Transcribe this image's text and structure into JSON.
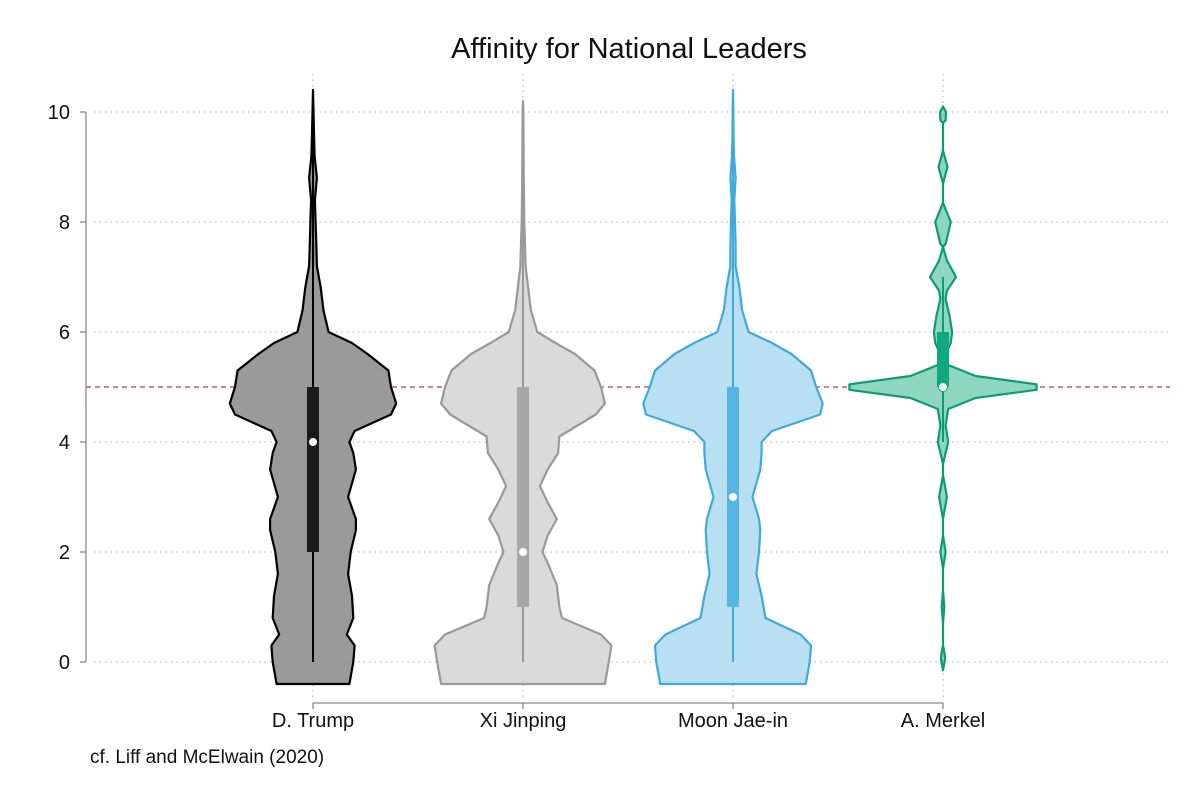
{
  "chart_data": {
    "type": "violin",
    "title": "Affinity for National Leaders",
    "xlabel": "",
    "ylabel": "",
    "ylim": [
      0,
      10
    ],
    "yticks": [
      0,
      2,
      4,
      6,
      8,
      10
    ],
    "grid": true,
    "reference_line": {
      "y": 5,
      "color": "#c0587a",
      "style": "dashed"
    },
    "note": "cf. Liff and McElwain (2020)",
    "categories": [
      "D. Trump",
      "Xi Jinping",
      "Moon Jae-in",
      "A. Merkel"
    ],
    "series": [
      {
        "name": "D. Trump",
        "fill": "#9a9a9a",
        "stroke": "#000000",
        "box_color": "#1a1a1a",
        "median": 4,
        "q1": 2,
        "q3": 5,
        "whisker_low": 0,
        "whisker_high": 10,
        "density": [
          [
            -0.4,
            0.28
          ],
          [
            0,
            0.31
          ],
          [
            0.3,
            0.32
          ],
          [
            0.5,
            0.26
          ],
          [
            0.8,
            0.31
          ],
          [
            1.2,
            0.3
          ],
          [
            1.6,
            0.27
          ],
          [
            2.0,
            0.29
          ],
          [
            2.4,
            0.33
          ],
          [
            2.6,
            0.33
          ],
          [
            3.0,
            0.27
          ],
          [
            3.5,
            0.33
          ],
          [
            3.8,
            0.31
          ],
          [
            4.0,
            0.28
          ],
          [
            4.2,
            0.32
          ],
          [
            4.5,
            0.6
          ],
          [
            4.7,
            0.64
          ],
          [
            5.0,
            0.6
          ],
          [
            5.3,
            0.58
          ],
          [
            5.6,
            0.42
          ],
          [
            5.8,
            0.3
          ],
          [
            6.0,
            0.12
          ],
          [
            6.4,
            0.08
          ],
          [
            6.8,
            0.06
          ],
          [
            7.2,
            0.03
          ],
          [
            7.6,
            0.025
          ],
          [
            8.0,
            0.02
          ],
          [
            8.4,
            0.015
          ],
          [
            8.8,
            0.03
          ],
          [
            9.2,
            0.012
          ],
          [
            9.6,
            0.008
          ],
          [
            10.0,
            0.004
          ],
          [
            10.4,
            0
          ]
        ]
      },
      {
        "name": "Xi Jinping",
        "fill": "#dadada",
        "stroke": "#999999",
        "box_color": "#a7a7a7",
        "median": 2,
        "q1": 1,
        "q3": 5,
        "whisker_low": 0,
        "whisker_high": 10,
        "density": [
          [
            -0.4,
            0.63
          ],
          [
            0,
            0.66
          ],
          [
            0.3,
            0.68
          ],
          [
            0.5,
            0.6
          ],
          [
            0.8,
            0.3
          ],
          [
            1.0,
            0.28
          ],
          [
            1.4,
            0.26
          ],
          [
            1.8,
            0.19
          ],
          [
            2.0,
            0.15
          ],
          [
            2.3,
            0.19
          ],
          [
            2.6,
            0.26
          ],
          [
            2.9,
            0.19
          ],
          [
            3.2,
            0.13
          ],
          [
            3.5,
            0.19
          ],
          [
            3.8,
            0.27
          ],
          [
            4.1,
            0.28
          ],
          [
            4.5,
            0.56
          ],
          [
            4.7,
            0.63
          ],
          [
            5.0,
            0.6
          ],
          [
            5.3,
            0.55
          ],
          [
            5.6,
            0.4
          ],
          [
            5.8,
            0.25
          ],
          [
            6.0,
            0.11
          ],
          [
            6.4,
            0.06
          ],
          [
            6.8,
            0.04
          ],
          [
            7.2,
            0.02
          ],
          [
            7.6,
            0.015
          ],
          [
            8.0,
            0.01
          ],
          [
            8.4,
            0.008
          ],
          [
            8.8,
            0.006
          ],
          [
            9.2,
            0.005
          ],
          [
            9.6,
            0.004
          ],
          [
            10.0,
            0.003
          ],
          [
            10.2,
            0
          ]
        ]
      },
      {
        "name": "Moon Jae-in",
        "fill": "#b9e0f2",
        "stroke": "#3fa9de",
        "box_color": "#55b6e6",
        "median": 3,
        "q1": 1,
        "q3": 5,
        "whisker_low": 0,
        "whisker_high": 10,
        "density": [
          [
            -0.4,
            0.56
          ],
          [
            0,
            0.59
          ],
          [
            0.3,
            0.6
          ],
          [
            0.5,
            0.52
          ],
          [
            0.8,
            0.25
          ],
          [
            1.2,
            0.22
          ],
          [
            1.6,
            0.18
          ],
          [
            2.0,
            0.2
          ],
          [
            2.4,
            0.21
          ],
          [
            2.6,
            0.2
          ],
          [
            3.0,
            0.15
          ],
          [
            3.5,
            0.21
          ],
          [
            3.8,
            0.22
          ],
          [
            4.0,
            0.22
          ],
          [
            4.2,
            0.3
          ],
          [
            4.5,
            0.67
          ],
          [
            4.7,
            0.69
          ],
          [
            5.0,
            0.64
          ],
          [
            5.3,
            0.6
          ],
          [
            5.6,
            0.45
          ],
          [
            5.8,
            0.3
          ],
          [
            6.0,
            0.12
          ],
          [
            6.4,
            0.07
          ],
          [
            6.8,
            0.05
          ],
          [
            7.2,
            0.02
          ],
          [
            7.6,
            0.02
          ],
          [
            8.0,
            0.015
          ],
          [
            8.4,
            0.01
          ],
          [
            8.8,
            0.02
          ],
          [
            9.2,
            0.008
          ],
          [
            9.6,
            0.004
          ],
          [
            10.0,
            0.003
          ],
          [
            10.4,
            0
          ]
        ]
      },
      {
        "name": "A. Merkel",
        "fill": "#8fd6bf",
        "stroke": "#0c9c73",
        "box_color": "#0fa97d",
        "median": 5,
        "q1": 5,
        "q3": 6,
        "whisker_low": 4,
        "whisker_high": 7,
        "density": [
          [
            -0.15,
            0
          ],
          [
            0.05,
            0.015
          ],
          [
            0.15,
            0.012
          ],
          [
            0.3,
            0
          ],
          [
            0.7,
            0
          ],
          [
            1.0,
            0.01
          ],
          [
            1.3,
            0
          ],
          [
            1.7,
            0
          ],
          [
            2.0,
            0.02
          ],
          [
            2.3,
            0
          ],
          [
            2.6,
            0
          ],
          [
            3.0,
            0.03
          ],
          [
            3.4,
            0
          ],
          [
            3.6,
            0
          ],
          [
            4.0,
            0.04
          ],
          [
            4.3,
            0.02
          ],
          [
            4.6,
            0.04
          ],
          [
            4.8,
            0.25
          ],
          [
            4.95,
            0.72
          ],
          [
            5.05,
            0.72
          ],
          [
            5.2,
            0.25
          ],
          [
            5.4,
            0.04
          ],
          [
            5.6,
            0.02
          ],
          [
            5.8,
            0.06
          ],
          [
            6.0,
            0.07
          ],
          [
            6.3,
            0.05
          ],
          [
            6.6,
            0.02
          ],
          [
            6.75,
            0.03
          ],
          [
            7.0,
            0.1
          ],
          [
            7.3,
            0.03
          ],
          [
            7.55,
            0
          ],
          [
            7.6,
            0.02
          ],
          [
            8.0,
            0.06
          ],
          [
            8.35,
            0
          ],
          [
            8.7,
            0
          ],
          [
            9.0,
            0.035
          ],
          [
            9.3,
            0
          ],
          [
            9.8,
            0
          ],
          [
            9.85,
            0.02
          ],
          [
            10.0,
            0.022
          ],
          [
            10.1,
            0
          ]
        ]
      }
    ]
  }
}
